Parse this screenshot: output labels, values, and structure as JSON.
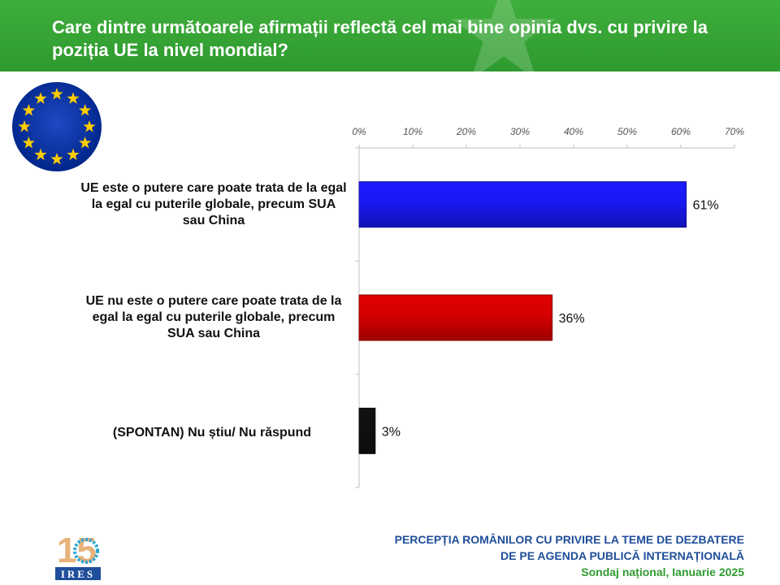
{
  "header": {
    "title": "Care dintre următoarele afirmații reflectă cel mai bine opinia dvs. cu privire la poziția UE la nivel mondial?"
  },
  "colors": {
    "header_green": "#2e9a2f",
    "eu_blue": "#003399",
    "eu_gold": "#ffcc00"
  },
  "chart_data": {
    "type": "bar",
    "orientation": "horizontal",
    "categories": [
      "UE este o putere care poate trata de la egal la egal cu puterile globale, precum SUA sau China",
      "UE nu este o putere care poate trata de la egal la egal cu puterile globale, precum SUA sau China",
      "(SPONTAN) Nu știu/ Nu răspund"
    ],
    "values": [
      61,
      36,
      3
    ],
    "value_labels": [
      "61%",
      "36%",
      "3%"
    ],
    "bar_colors": [
      "#1a1aff",
      "#e00000",
      "#111111"
    ],
    "xlim": [
      0,
      70
    ],
    "ticks": [
      0,
      10,
      20,
      30,
      40,
      50,
      60,
      70
    ],
    "tick_labels": [
      "0%",
      "10%",
      "20%",
      "30%",
      "40%",
      "50%",
      "60%",
      "70%"
    ],
    "axis_position": "top",
    "grid": false
  },
  "logo": {
    "number": "15",
    "text": "IRES"
  },
  "footer": {
    "line1": "PERCEPȚIA ROMÂNILOR CU PRIVIRE LA TEME DE DEZBATERE",
    "line2": "DE PE AGENDA PUBLICĂ INTERNAȚIONALĂ",
    "line3": "Sondaj național, Ianuarie 2025"
  }
}
